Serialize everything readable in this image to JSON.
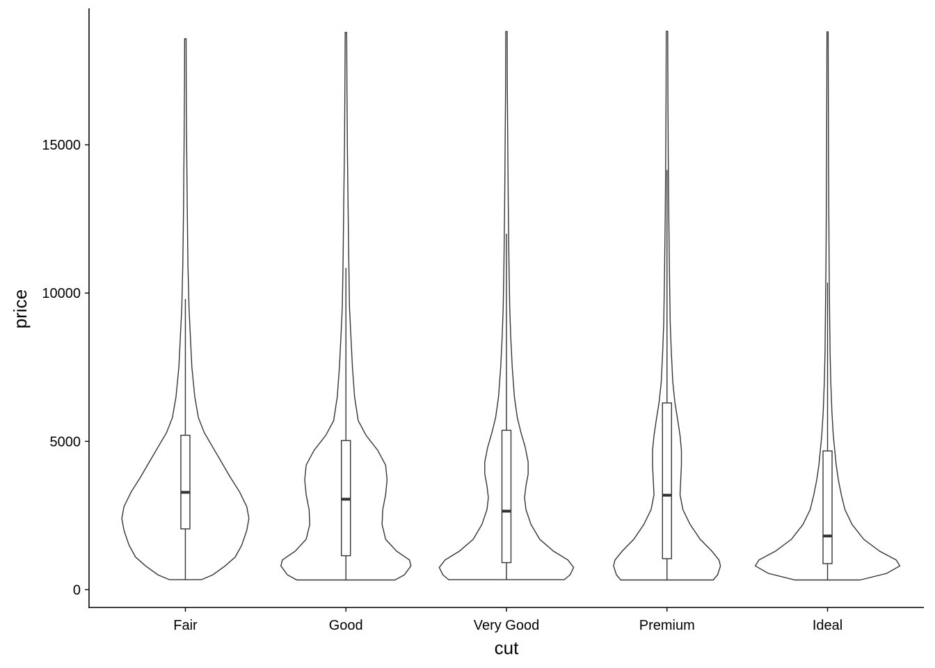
{
  "chart_data": {
    "type": "violin",
    "title": "",
    "xlabel": "cut",
    "ylabel": "price",
    "categories": [
      "Fair",
      "Good",
      "Very Good",
      "Premium",
      "Ideal"
    ],
    "y_ticks": [
      0,
      5000,
      10000,
      15000
    ],
    "y_tick_labels": [
      "0",
      "5000",
      "10000",
      "15000"
    ],
    "ylim": [
      -600,
      19600
    ],
    "grid": false,
    "box_stats": [
      {
        "category": "Fair",
        "min": 337,
        "q1": 2050,
        "median": 3282,
        "q3": 5206,
        "max": 18574,
        "whisker_high": 9800
      },
      {
        "category": "Good",
        "min": 327,
        "q1": 1145,
        "median": 3050,
        "q3": 5028,
        "max": 18788,
        "whisker_high": 10850
      },
      {
        "category": "Very Good",
        "min": 336,
        "q1": 912,
        "median": 2648,
        "q3": 5373,
        "max": 18818,
        "whisker_high": 12000
      },
      {
        "category": "Premium",
        "min": 326,
        "q1": 1046,
        "median": 3185,
        "q3": 6296,
        "max": 18823,
        "whisker_high": 14150
      },
      {
        "category": "Ideal",
        "min": 326,
        "q1": 878,
        "median": 1810,
        "q3": 4678,
        "max": 18806,
        "whisker_high": 10350
      }
    ],
    "density": [
      {
        "category": "Fair",
        "profile": [
          [
            337,
            0.22
          ],
          [
            500,
            0.38
          ],
          [
            800,
            0.55
          ],
          [
            1100,
            0.69
          ],
          [
            1500,
            0.78
          ],
          [
            2000,
            0.85
          ],
          [
            2400,
            0.88
          ],
          [
            2800,
            0.85
          ],
          [
            3300,
            0.75
          ],
          [
            3800,
            0.62
          ],
          [
            4300,
            0.5
          ],
          [
            4800,
            0.38
          ],
          [
            5300,
            0.26
          ],
          [
            5800,
            0.18
          ],
          [
            6500,
            0.13
          ],
          [
            7500,
            0.09
          ],
          [
            8500,
            0.07
          ],
          [
            9500,
            0.05
          ],
          [
            11000,
            0.035
          ],
          [
            13000,
            0.025
          ],
          [
            15000,
            0.018
          ],
          [
            17000,
            0.012
          ],
          [
            18574,
            0.01
          ]
        ]
      },
      {
        "category": "Good",
        "profile": [
          [
            327,
            0.68
          ],
          [
            500,
            0.81
          ],
          [
            800,
            0.9
          ],
          [
            1000,
            0.88
          ],
          [
            1300,
            0.7
          ],
          [
            1700,
            0.55
          ],
          [
            2200,
            0.5
          ],
          [
            2700,
            0.51
          ],
          [
            3200,
            0.55
          ],
          [
            3700,
            0.57
          ],
          [
            4200,
            0.55
          ],
          [
            4700,
            0.44
          ],
          [
            5200,
            0.28
          ],
          [
            5700,
            0.17
          ],
          [
            6500,
            0.12
          ],
          [
            7500,
            0.09
          ],
          [
            8500,
            0.07
          ],
          [
            9500,
            0.05
          ],
          [
            11000,
            0.04
          ],
          [
            13000,
            0.03
          ],
          [
            15000,
            0.02
          ],
          [
            17000,
            0.014
          ],
          [
            18788,
            0.01
          ]
        ]
      },
      {
        "category": "Very Good",
        "profile": [
          [
            336,
            0.8
          ],
          [
            500,
            0.88
          ],
          [
            750,
            0.93
          ],
          [
            1000,
            0.85
          ],
          [
            1300,
            0.65
          ],
          [
            1700,
            0.46
          ],
          [
            2200,
            0.34
          ],
          [
            2700,
            0.27
          ],
          [
            3100,
            0.25
          ],
          [
            3500,
            0.27
          ],
          [
            3900,
            0.3
          ],
          [
            4300,
            0.3
          ],
          [
            4800,
            0.26
          ],
          [
            5300,
            0.2
          ],
          [
            5800,
            0.15
          ],
          [
            6500,
            0.11
          ],
          [
            7500,
            0.08
          ],
          [
            8500,
            0.06
          ],
          [
            9500,
            0.045
          ],
          [
            11000,
            0.035
          ],
          [
            13000,
            0.025
          ],
          [
            15000,
            0.018
          ],
          [
            17000,
            0.012
          ],
          [
            18818,
            0.01
          ]
        ]
      },
      {
        "category": "Premium",
        "profile": [
          [
            326,
            0.64
          ],
          [
            500,
            0.7
          ],
          [
            800,
            0.74
          ],
          [
            1000,
            0.72
          ],
          [
            1300,
            0.62
          ],
          [
            1700,
            0.46
          ],
          [
            2200,
            0.32
          ],
          [
            2700,
            0.22
          ],
          [
            3200,
            0.18
          ],
          [
            3700,
            0.19
          ],
          [
            4200,
            0.2
          ],
          [
            4700,
            0.2
          ],
          [
            5200,
            0.18
          ],
          [
            5700,
            0.15
          ],
          [
            6300,
            0.11
          ],
          [
            7000,
            0.08
          ],
          [
            8000,
            0.06
          ],
          [
            9000,
            0.045
          ],
          [
            10500,
            0.035
          ],
          [
            12500,
            0.025
          ],
          [
            14500,
            0.018
          ],
          [
            16500,
            0.013
          ],
          [
            18823,
            0.01
          ]
        ]
      },
      {
        "category": "Ideal",
        "profile": [
          [
            326,
            0.45
          ],
          [
            550,
            0.82
          ],
          [
            800,
            1.0
          ],
          [
            1000,
            0.95
          ],
          [
            1300,
            0.72
          ],
          [
            1700,
            0.5
          ],
          [
            2200,
            0.34
          ],
          [
            2700,
            0.24
          ],
          [
            3200,
            0.19
          ],
          [
            3700,
            0.15
          ],
          [
            4200,
            0.12
          ],
          [
            4700,
            0.1
          ],
          [
            5200,
            0.08
          ],
          [
            6000,
            0.06
          ],
          [
            7000,
            0.045
          ],
          [
            8000,
            0.035
          ],
          [
            9500,
            0.028
          ],
          [
            11000,
            0.022
          ],
          [
            13000,
            0.017
          ],
          [
            15000,
            0.013
          ],
          [
            17000,
            0.01
          ],
          [
            18806,
            0.008
          ]
        ]
      }
    ]
  }
}
